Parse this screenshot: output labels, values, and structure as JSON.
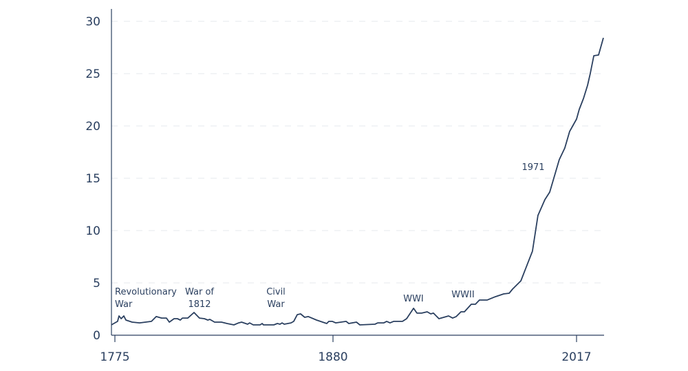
{
  "chart_data": {
    "type": "line",
    "title": "",
    "xlabel": "",
    "ylabel": "",
    "x_tick_labels": [
      "1775",
      "1880",
      "2017"
    ],
    "y_ticks": [
      0,
      5,
      10,
      15,
      20,
      25,
      30
    ],
    "y_tick_labels": [
      "0",
      "5",
      "10",
      "15",
      "20",
      "25",
      "30"
    ],
    "ylim": [
      0,
      30
    ],
    "grid": "horizontal dashed",
    "legend": "none",
    "line_color": "#2a3f5f",
    "x": [
      1773.3,
      1776.3,
      1777.0,
      1778.0,
      1779.3,
      1780.3,
      1783.3,
      1786.9,
      1792.6,
      1794.9,
      1797.5,
      1799.8,
      1801.2,
      1803.5,
      1805.1,
      1806.5,
      1807.5,
      1810.1,
      1813.1,
      1815.7,
      1818.1,
      1819.7,
      1820.7,
      1823.0,
      1826.3,
      1829.0,
      1832.3,
      1834.6,
      1836.0,
      1838.9,
      1839.9,
      1841.6,
      1844.9,
      1845.9,
      1846.5,
      1851.5,
      1853.2,
      1854.5,
      1855.5,
      1856.5,
      1859.8,
      1861.1,
      1862.8,
      1864.4,
      1866.4,
      1868.1,
      1872.1,
      1877.0,
      1878.0,
      1879.7,
      1881.5,
      1887.4,
      1888.9,
      1893.2,
      1895.1,
      1903.6,
      1905.2,
      1908.6,
      1910.2,
      1912.1,
      1914.1,
      1917.2,
      1919.1,
      1921.4,
      1925.3,
      1927.2,
      1929.9,
      1933.0,
      1935.0,
      1936.5,
      1939.6,
      1942.3,
      1945.0,
      1947.3,
      1949.3,
      1952.0,
      1953.9,
      1957.8,
      1960.1,
      1962.4,
      1966.7,
      1971.3,
      1976.0,
      1979.1,
      1981.0,
      1985.7,
      1992.2,
      1995.3,
      1999.2,
      2001.9,
      2007.3,
      2010.4,
      2013.1,
      2017.0,
      2018.5,
      2020.9,
      2023.2,
      2024.7,
      2026.7,
      2029.4,
      2032.1
    ],
    "values": [
      0.99,
      1.32,
      1.84,
      1.58,
      1.84,
      1.45,
      1.25,
      1.18,
      1.32,
      1.78,
      1.64,
      1.64,
      1.25,
      1.58,
      1.58,
      1.45,
      1.64,
      1.64,
      2.17,
      1.64,
      1.58,
      1.45,
      1.51,
      1.25,
      1.25,
      1.12,
      0.99,
      1.18,
      1.25,
      1.05,
      1.18,
      0.99,
      0.99,
      1.12,
      0.99,
      0.99,
      1.12,
      1.05,
      1.18,
      1.05,
      1.18,
      1.32,
      1.97,
      2.04,
      1.71,
      1.78,
      1.45,
      1.12,
      1.32,
      1.32,
      1.18,
      1.32,
      1.12,
      1.25,
      0.99,
      1.05,
      1.18,
      1.18,
      1.32,
      1.18,
      1.32,
      1.32,
      1.32,
      1.58,
      2.57,
      2.11,
      2.11,
      2.24,
      2.04,
      2.11,
      1.58,
      1.71,
      1.84,
      1.64,
      1.78,
      2.24,
      2.24,
      2.96,
      2.96,
      3.36,
      3.36,
      3.68,
      3.95,
      4.01,
      4.41,
      5.2,
      8.03,
      11.45,
      12.96,
      13.68,
      16.78,
      17.89,
      19.47,
      20.66,
      21.58,
      22.63,
      23.88,
      25.0,
      26.71,
      26.78,
      28.42
    ],
    "annotations": [
      {
        "lines": [
          "Revolutionary",
          "War"
        ]
      },
      {
        "lines": [
          "War of",
          "1812"
        ]
      },
      {
        "lines": [
          "Civil",
          "War"
        ]
      },
      {
        "lines": [
          "WWI"
        ]
      },
      {
        "lines": [
          "WWII"
        ]
      },
      {
        "lines": [
          "1971"
        ]
      }
    ]
  }
}
